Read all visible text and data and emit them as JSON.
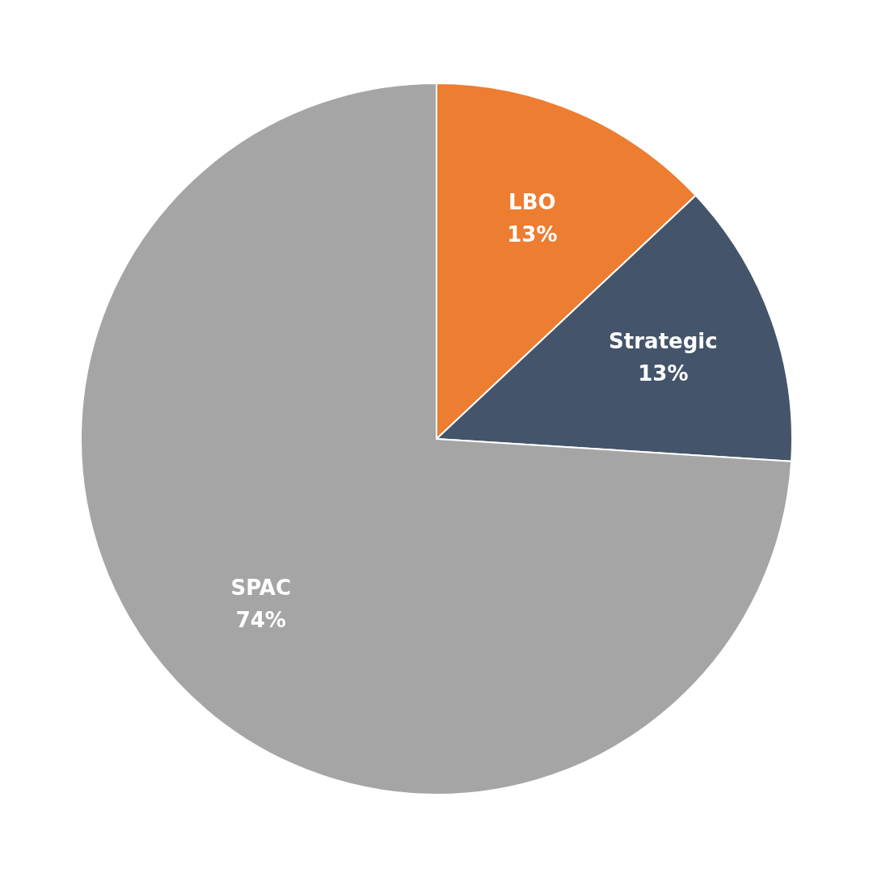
{
  "chart_data": {
    "type": "pie",
    "categories": [
      "LBO",
      "Strategic",
      "SPAC"
    ],
    "values": [
      13,
      13,
      74
    ],
    "colors": [
      "#ed7d31",
      "#44546a",
      "#a5a5a5"
    ],
    "value_labels": [
      "13%",
      "13%",
      "74%"
    ]
  }
}
